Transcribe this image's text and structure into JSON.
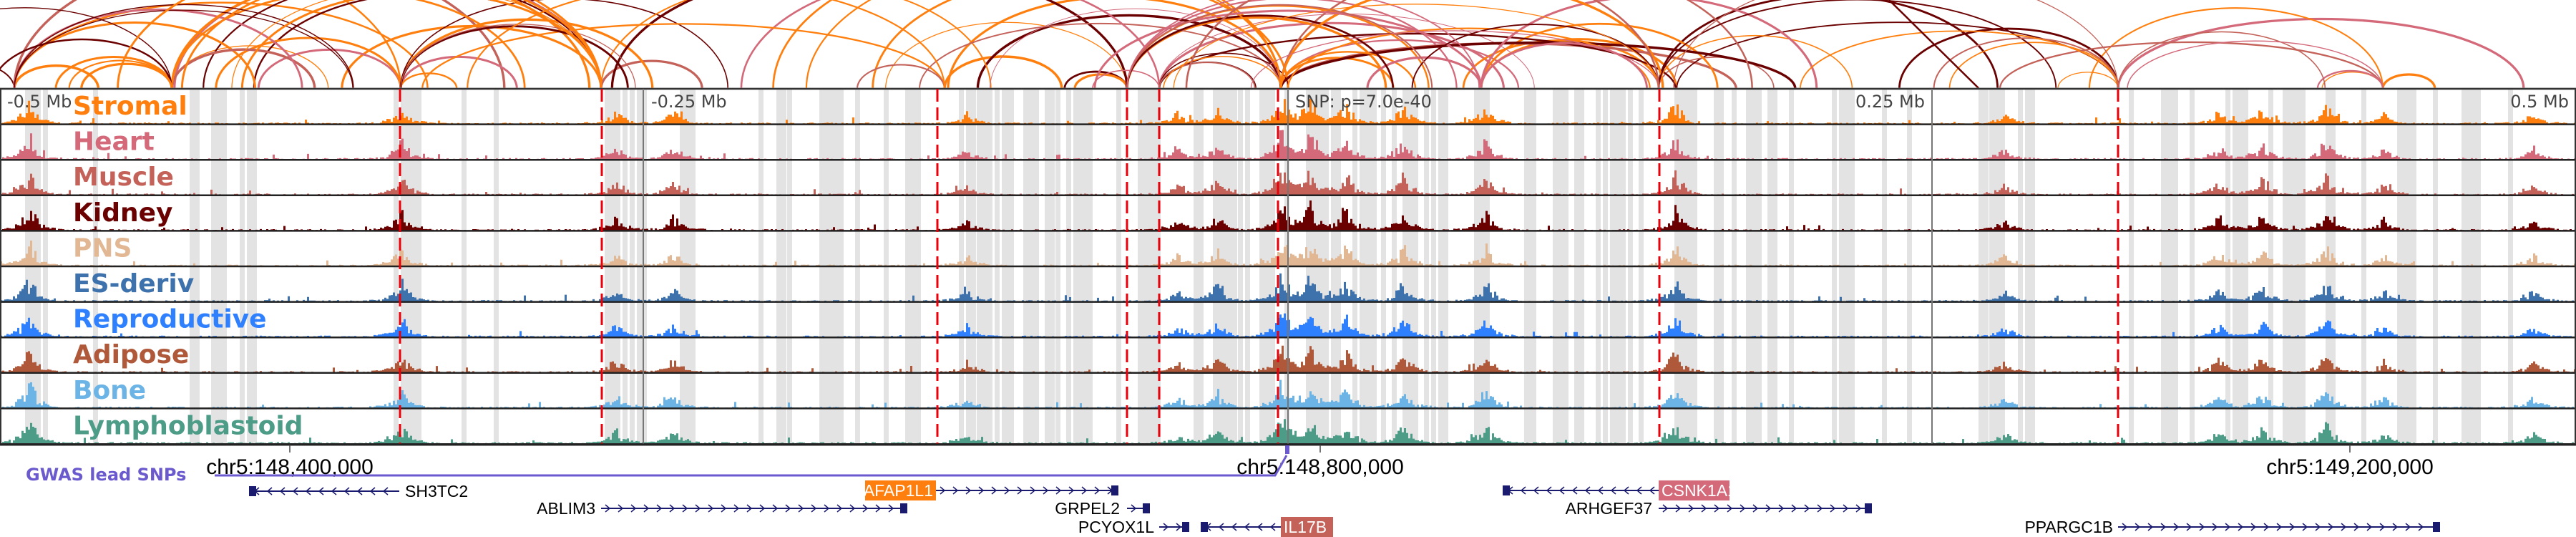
{
  "colors": {
    "gwas": "#6a5acd",
    "gene": "#1a1a6e",
    "tss_line": "#e8000b",
    "shade": "#e3e3e3"
  },
  "tracks": [
    {
      "label": "Stromal",
      "color": "#ff7f0e"
    },
    {
      "label": "Heart",
      "color": "#d4697a"
    },
    {
      "label": "Muscle",
      "color": "#c4625a"
    },
    {
      "label": "Kidney",
      "color": "#6b0000"
    },
    {
      "label": "PNS",
      "color": "#e2b793"
    },
    {
      "label": "ES-deriv",
      "color": "#3d72ad"
    },
    {
      "label": "Reproductive",
      "color": "#2f80ff"
    },
    {
      "label": "Adipose",
      "color": "#b0583a"
    },
    {
      "label": "Bone",
      "color": "#6cb4e6"
    },
    {
      "label": "Lymphoblastoid",
      "color": "#4c9c88"
    }
  ],
  "axis": {
    "offsets": [
      "-0.5 Mb",
      "-0.25 Mb",
      "0.25 Mb",
      "0.5 Mb"
    ],
    "snp_label": "SNP: p=7.0e-40",
    "coordinates": [
      "chr5:148,400,000",
      "chr5:148,800,000",
      "chr5:149,200,000"
    ]
  },
  "gwas": {
    "label": "GWAS lead SNPs"
  },
  "genes": [
    {
      "name": "SH3TC2",
      "strand": "-",
      "highlight": null
    },
    {
      "name": "ABLIM3",
      "strand": "+",
      "highlight": null
    },
    {
      "name": "AFAP1L1",
      "strand": "+",
      "highlight": "#ff7f0e"
    },
    {
      "name": "GRPEL2",
      "strand": "+",
      "highlight": null
    },
    {
      "name": "PCYOX1L",
      "strand": "+",
      "highlight": null
    },
    {
      "name": "IL17B",
      "strand": "-",
      "highlight": "#c4625a"
    },
    {
      "name": "CSNK1A1",
      "strand": "-",
      "highlight": "#d4697a"
    },
    {
      "name": "ARHGEF37",
      "strand": "+",
      "highlight": null
    },
    {
      "name": "PPARGC1B",
      "strand": "+",
      "highlight": null
    }
  ]
}
